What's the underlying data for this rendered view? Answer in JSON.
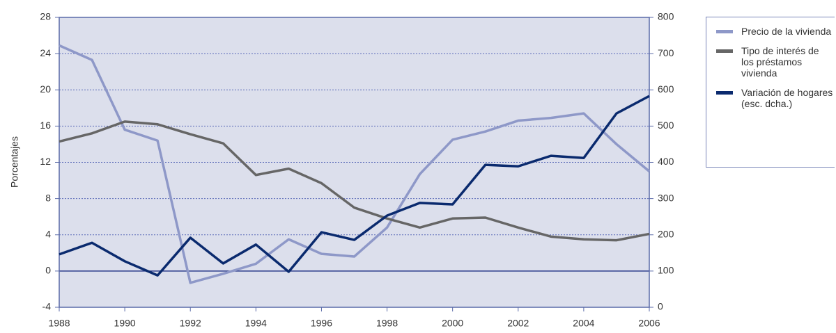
{
  "chart_data": {
    "type": "line",
    "y_label": "Porcentajes",
    "x": [
      1988,
      1989,
      1990,
      1991,
      1992,
      1993,
      1994,
      1995,
      1996,
      1997,
      1998,
      1999,
      2000,
      2001,
      2002,
      2003,
      2004,
      2005,
      2006
    ],
    "xlim": [
      1988,
      2006
    ],
    "xticks": [
      1988,
      1990,
      1992,
      1994,
      1996,
      1998,
      2000,
      2002,
      2004,
      2006
    ],
    "ylim": [
      -4,
      28
    ],
    "yticks": [
      -4,
      0,
      4,
      8,
      12,
      16,
      20,
      24,
      28
    ],
    "y2lim": [
      0,
      800
    ],
    "y2ticks": [
      0,
      100,
      200,
      300,
      400,
      500,
      600,
      700,
      800
    ],
    "grid": true,
    "legend": "right",
    "series": [
      {
        "name": "Precio de la vivienda",
        "color": "#8e98c8",
        "values": [
          24.9,
          23.3,
          15.6,
          14.4,
          -1.3,
          -0.3,
          0.8,
          3.5,
          1.9,
          1.6,
          4.8,
          10.7,
          14.5,
          15.4,
          16.6,
          16.9,
          17.4,
          14.0,
          11.0
        ]
      },
      {
        "name": "Tipo de interés de los préstamos vivienda",
        "color": "#666666",
        "values": [
          14.3,
          15.2,
          16.5,
          16.2,
          15.1,
          14.1,
          10.6,
          11.3,
          9.7,
          7.0,
          5.8,
          4.8,
          5.8,
          5.9,
          4.8,
          3.8,
          3.5,
          3.4,
          4.1
        ]
      },
      {
        "name": "Variación de hogares (esc. dcha.)",
        "color": "#0a2a6e",
        "axis": "y2",
        "values": [
          146,
          178,
          127,
          88,
          192,
          121,
          173,
          98,
          207,
          186,
          253,
          288,
          284,
          393,
          389,
          418,
          412,
          535,
          583
        ]
      }
    ]
  }
}
